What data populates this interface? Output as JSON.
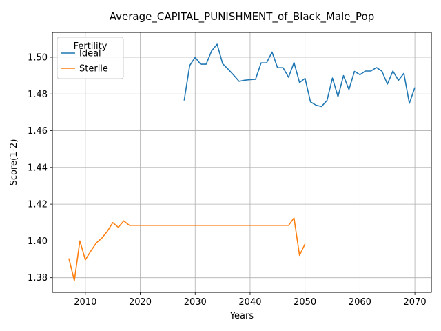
{
  "chart_data": {
    "type": "line",
    "title": "Average_CAPITAL_PUNISHMENT_of_Black_Male_Pop",
    "xlabel": "Years",
    "ylabel": "Score(1-2)",
    "xlim": [
      2004,
      2073
    ],
    "ylim": [
      1.372,
      1.5135
    ],
    "xticks": [
      2010,
      2020,
      2030,
      2040,
      2050,
      2060,
      2070
    ],
    "yticks": [
      1.38,
      1.4,
      1.42,
      1.44,
      1.46,
      1.48,
      1.5
    ],
    "ytick_labels": [
      "1.38",
      "1.40",
      "1.42",
      "1.44",
      "1.46",
      "1.48",
      "1.50"
    ],
    "grid": true,
    "legend": {
      "title": "Fertility",
      "position": "top-left"
    },
    "series": [
      {
        "name": "Ideal",
        "color": "#1f77b4",
        "x": [
          2028,
          2029,
          2030,
          2031,
          2032,
          2033,
          2034,
          2035,
          2036,
          2037,
          2038,
          2039,
          2040,
          2041,
          2042,
          2043,
          2044,
          2045,
          2046,
          2047,
          2048,
          2049,
          2050,
          2051,
          2052,
          2053,
          2054,
          2055,
          2056,
          2057,
          2058,
          2059,
          2060,
          2061,
          2062,
          2063,
          2064,
          2065,
          2066,
          2067,
          2068,
          2069,
          2070
        ],
        "y": [
          1.4765,
          1.4955,
          1.4999,
          1.4962,
          1.4962,
          1.5035,
          1.5071,
          1.4965,
          1.4935,
          1.4903,
          1.4869,
          1.4875,
          1.4878,
          1.488,
          1.4969,
          1.4969,
          1.5028,
          1.4943,
          1.4943,
          1.4891,
          1.4971,
          1.4862,
          1.4885,
          1.4757,
          1.4739,
          1.4732,
          1.4765,
          1.4887,
          1.4785,
          1.49,
          1.4824,
          1.4923,
          1.4905,
          1.4925,
          1.4925,
          1.4944,
          1.4924,
          1.4854,
          1.4925,
          1.4874,
          1.4912,
          1.4749,
          1.4836
        ]
      },
      {
        "name": "Sterile",
        "color": "#ff7f0e",
        "x": [
          2007,
          2008,
          2009,
          2010,
          2011,
          2012,
          2013,
          2014,
          2015,
          2016,
          2017,
          2018,
          2019,
          2020,
          2025,
          2030,
          2035,
          2040,
          2045,
          2047,
          2048,
          2049,
          2050
        ],
        "y": [
          1.3905,
          1.3784,
          1.4,
          1.3897,
          1.3945,
          1.3989,
          1.4015,
          1.4052,
          1.41,
          1.4074,
          1.4109,
          1.4085,
          1.4085,
          1.4085,
          1.4085,
          1.4085,
          1.4085,
          1.4085,
          1.4085,
          1.4085,
          1.4125,
          1.3921,
          1.3984
        ]
      }
    ]
  }
}
